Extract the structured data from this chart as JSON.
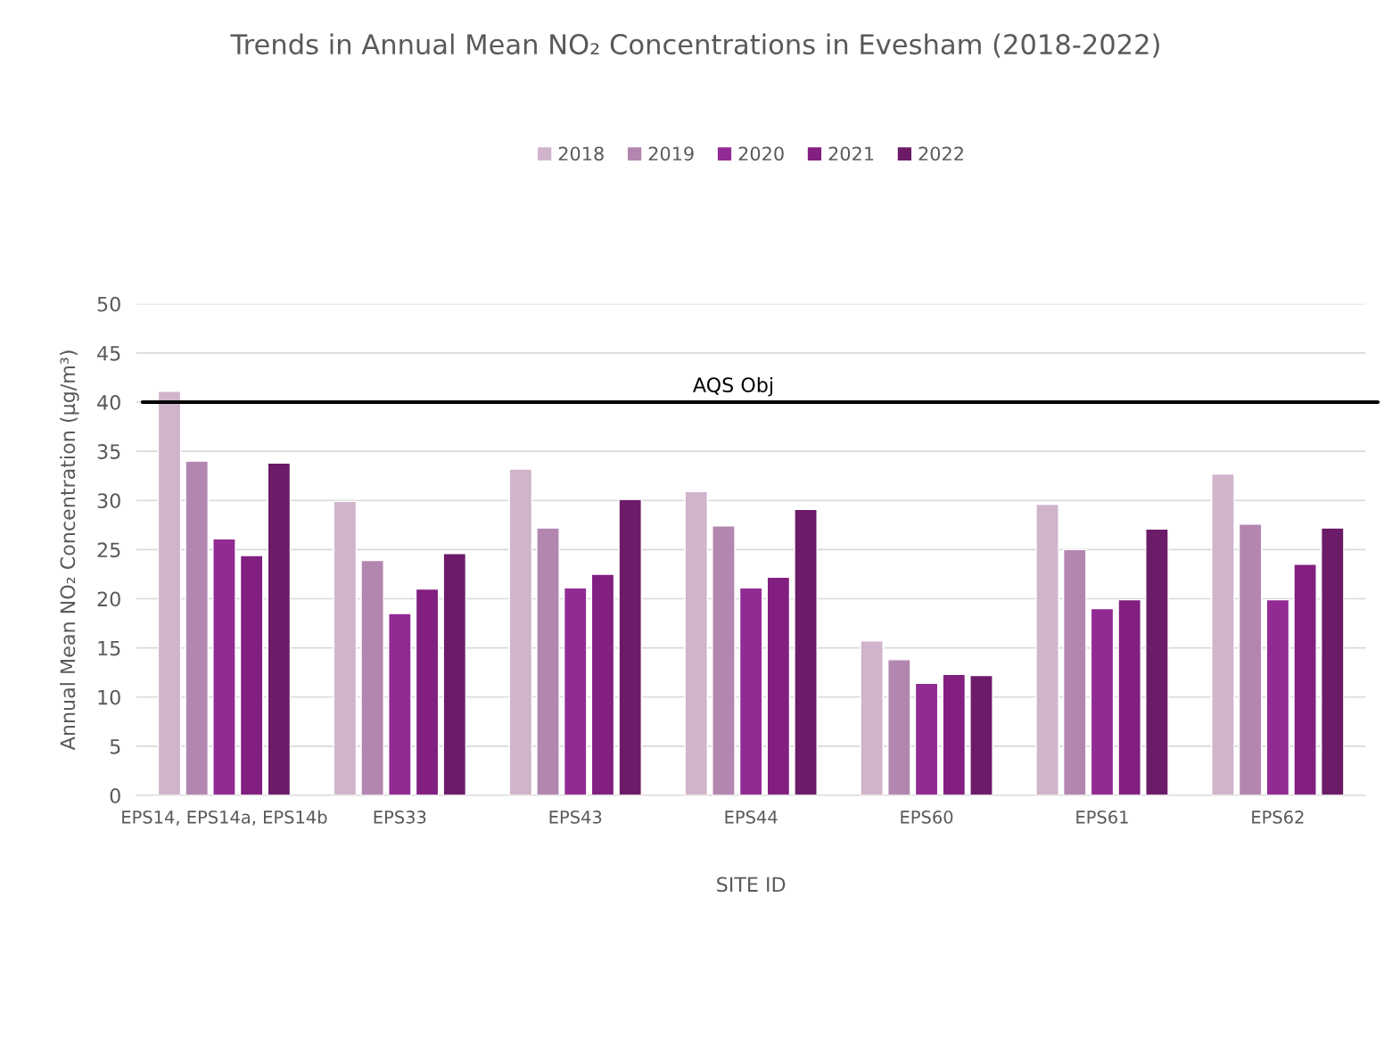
{
  "chart_data": {
    "type": "bar",
    "title": "Trends in Annual Mean NO₂ Concentrations in Evesham (2018-2022)",
    "xlabel": "SITE ID",
    "ylabel": "Annual Mean NO₂ Concentration (µg/m³)",
    "categories": [
      "EPS14, EPS14a, EPS14b",
      "EPS33",
      "EPS43",
      "EPS44",
      "EPS60",
      "EPS61",
      "EPS62"
    ],
    "series": [
      {
        "name": "2018",
        "color": "#d0b4cc",
        "values": [
          41.1,
          29.9,
          33.2,
          30.9,
          15.7,
          29.6,
          32.7
        ]
      },
      {
        "name": "2019",
        "color": "#b386b0",
        "values": [
          34.0,
          23.9,
          27.2,
          27.4,
          13.8,
          25.0,
          27.6
        ]
      },
      {
        "name": "2020",
        "color": "#922a93",
        "values": [
          26.1,
          18.5,
          21.1,
          21.1,
          11.4,
          19.0,
          19.9
        ]
      },
      {
        "name": "2021",
        "color": "#821f80",
        "values": [
          24.4,
          21.0,
          22.5,
          22.2,
          12.3,
          19.9,
          23.5
        ]
      },
      {
        "name": "2022",
        "color": "#6b1b68",
        "values": [
          33.8,
          24.6,
          30.1,
          29.1,
          12.2,
          27.1,
          27.2
        ]
      }
    ],
    "ylim": [
      0,
      50
    ],
    "yticks": [
      0,
      5,
      10,
      15,
      20,
      25,
      30,
      35,
      40,
      45,
      50
    ],
    "ref_lines": [
      {
        "axis": "y",
        "value": 40,
        "label": "AQS Obj",
        "color": "#000000"
      }
    ],
    "grid": "y",
    "legend": "top"
  }
}
